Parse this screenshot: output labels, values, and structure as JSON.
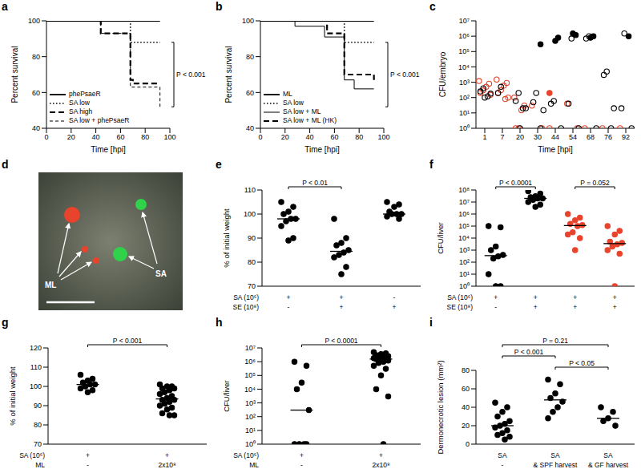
{
  "chart_data": [
    {
      "panel": "a",
      "type": "step",
      "x_label": "Time [hpi]",
      "y_label": "Percent survival",
      "xlim": [
        0,
        100
      ],
      "xticks": [
        0,
        20,
        40,
        60,
        80,
        100
      ],
      "ylim": [
        40,
        100
      ],
      "yticks": [
        40,
        60,
        80,
        100
      ],
      "legend": "lower left",
      "annotations": [
        "P < 0.001"
      ],
      "series": [
        {
          "name": "phePsaeR",
          "line_style": "solid",
          "x": [
            0,
            92
          ],
          "values": [
            100,
            100
          ]
        },
        {
          "name": "SA low",
          "line_style": "dotted",
          "x": [
            0,
            68,
            92
          ],
          "values": [
            100,
            88,
            88
          ]
        },
        {
          "name": "SA high",
          "line_style": "dashed",
          "x": [
            0,
            44,
            68,
            70,
            92
          ],
          "values": [
            100,
            93,
            67,
            65,
            65
          ]
        },
        {
          "name": "SA low + phePsaeR",
          "line_style": "shortdash",
          "x": [
            0,
            44,
            68,
            92
          ],
          "values": [
            100,
            93,
            63,
            52
          ]
        }
      ]
    },
    {
      "panel": "b",
      "type": "step",
      "x_label": "Time [hpi]",
      "y_label": "Percent survival",
      "xlim": [
        0,
        100
      ],
      "xticks": [
        0,
        20,
        40,
        60,
        80,
        100
      ],
      "ylim": [
        40,
        100
      ],
      "yticks": [
        40,
        60,
        80,
        100
      ],
      "legend": "lower left",
      "annotations": [
        "P < 0.001"
      ],
      "series": [
        {
          "name": "ML",
          "line_style": "solid",
          "x": [
            0,
            92
          ],
          "values": [
            100,
            100
          ]
        },
        {
          "name": "SA low",
          "line_style": "dotted",
          "x": [
            0,
            68,
            92
          ],
          "values": [
            100,
            88,
            88
          ]
        },
        {
          "name": "SA low + ML",
          "line_style": "thin",
          "x": [
            0,
            28,
            52,
            68,
            76,
            92
          ],
          "values": [
            100,
            97,
            91,
            67,
            62,
            62
          ]
        },
        {
          "name": "SA low + ML (HK)",
          "line_style": "dashed",
          "x": [
            0,
            54,
            68,
            92
          ],
          "values": [
            100,
            93,
            70,
            67
          ]
        }
      ]
    },
    {
      "panel": "c",
      "type": "scatter",
      "x_label": "Time [hpi]",
      "y_label": "CFU/embryo",
      "categories": [
        "1",
        "7",
        "20",
        "30",
        "44",
        "54",
        "68",
        "76",
        "92"
      ],
      "log": "y",
      "ylim": [
        1,
        10000000
      ],
      "yticks": [
        {
          "value": 1,
          "label": "10⁰"
        },
        {
          "value": 10,
          "label": "10¹"
        },
        {
          "value": 100,
          "label": "10²"
        },
        {
          "value": 1000,
          "label": "10³"
        },
        {
          "value": 10000,
          "label": "10⁴"
        },
        {
          "value": 100000,
          "label": "10⁵"
        },
        {
          "value": 1000000,
          "label": "10⁶"
        },
        {
          "value": 10000000,
          "label": "10⁷"
        }
      ],
      "series": [
        {
          "color": "#e8432c",
          "marker": "open",
          "values": [
            [
              1200,
              800,
              500,
              300,
              200,
              150
            ],
            [
              1500,
              900,
              600,
              300,
              200,
              100,
              80
            ],
            [
              100,
              30,
              15,
              1,
              1
            ],
            [
              30,
              1
            ],
            [
              1
            ],
            [
              40,
              1
            ],
            [
              1
            ],
            [
              1
            ],
            [
              1
            ]
          ]
        },
        {
          "color": "#000000",
          "marker": "open",
          "values": [
            [
              400,
              250,
              180,
              120,
              100
            ],
            [
              500,
              200
            ],
            [
              200,
              60,
              20,
              20,
              1
            ],
            [
              200,
              50,
              15,
              1
            ],
            [
              60,
              40,
              1
            ],
            [
              700000,
              40,
              1
            ],
            [
              1000000,
              700000,
              1
            ],
            [
              5000,
              3000,
              20,
              1
            ],
            [
              1500000,
              20,
              1
            ]
          ]
        },
        {
          "color": "#000000",
          "marker": "filled",
          "values": [
            [],
            [],
            [],
            [
              300000
            ],
            [
              800000,
              500000
            ],
            [
              1200000,
              1500000
            ],
            [
              1000000,
              800000
            ],
            [],
            [
              1000000
            ]
          ]
        },
        {
          "color": "#e8432c",
          "marker": "filled",
          "values": [
            [],
            [],
            [],
            [],
            [
              200
            ],
            [],
            [],
            [],
            []
          ]
        }
      ]
    },
    {
      "panel": "d",
      "type": "image",
      "labels": [
        "ML",
        "SA"
      ]
    },
    {
      "panel": "e",
      "type": "dot",
      "y_label": "% of initial weight",
      "ylim": [
        70,
        110
      ],
      "yticks": [
        70,
        80,
        90,
        100,
        110
      ],
      "annotations": [
        "P < 0.01"
      ],
      "x_rows": [
        {
          "label": "SA (10⁶)",
          "values": [
            "+",
            "+",
            "-"
          ]
        },
        {
          "label": "SE (10⁸)",
          "values": [
            "-",
            "+",
            "+"
          ]
        }
      ],
      "groups": [
        {
          "color": "#000000",
          "values": [
            105,
            103,
            101,
            100,
            98,
            98,
            97,
            95,
            90,
            89
          ],
          "median": 98
        },
        {
          "color": "#000000",
          "values": [
            98,
            90,
            88,
            87,
            85,
            84,
            83,
            82,
            78,
            75
          ],
          "median": 84.5
        },
        {
          "color": "#000000",
          "values": [
            105,
            104,
            103,
            101,
            100,
            100,
            100,
            99,
            98
          ],
          "median": 100
        }
      ]
    },
    {
      "panel": "f",
      "type": "dot",
      "y_label": "CFU/liver",
      "log": "y",
      "ylim": [
        1,
        100000000
      ],
      "yticks": [
        {
          "value": 1,
          "label": "10⁰"
        },
        {
          "value": 10,
          "label": "10¹"
        },
        {
          "value": 100,
          "label": "10²"
        },
        {
          "value": 1000,
          "label": "10³"
        },
        {
          "value": 10000,
          "label": "10⁴"
        },
        {
          "value": 100000,
          "label": "10⁵"
        },
        {
          "value": 1000000,
          "label": "10⁶"
        },
        {
          "value": 10000000,
          "label": "10⁷"
        },
        {
          "value": 100000000,
          "label": "10⁸"
        }
      ],
      "annotations": [
        "P < 0.0001",
        "P = 0.052"
      ],
      "x_rows": [
        {
          "label": "SA (10⁶)",
          "values": [
            "+",
            "+",
            "+",
            "+"
          ]
        },
        {
          "label": "SE (10⁸)",
          "values": [
            "-",
            "+",
            "+",
            "+"
          ]
        }
      ],
      "groups": [
        {
          "color": "#000000",
          "values": [
            100000,
            80000,
            2000,
            1000,
            400,
            300,
            200,
            10,
            1,
            1
          ],
          "median": 350
        },
        {
          "color": "#000000",
          "values": [
            80000000,
            50000000,
            30000000,
            25000000,
            20000000,
            20000000,
            15000000,
            10000000,
            6000000,
            4000000
          ],
          "median": 20000000
        },
        {
          "color": "#e8432c",
          "values": [
            1000000,
            500000,
            300000,
            150000,
            120000,
            100000,
            30000,
            20000,
            10000,
            1000
          ],
          "median": 110000
        },
        {
          "color": "#e8432c",
          "values": [
            100000,
            40000,
            20000,
            5000,
            4000,
            3000,
            2000,
            1000,
            500,
            1
          ],
          "median": 3500
        }
      ]
    },
    {
      "panel": "g",
      "type": "dot",
      "y_label": "% of initial weight",
      "ylim": [
        70,
        120
      ],
      "yticks": [
        70,
        80,
        90,
        100,
        110,
        120
      ],
      "annotations": [
        "P < 0.001"
      ],
      "x_rows": [
        {
          "label": "SA (10⁶)",
          "values": [
            "+",
            "+"
          ]
        },
        {
          "label": "ML",
          "values": [
            "-",
            "2x10⁸"
          ]
        }
      ],
      "groups": [
        {
          "color": "#000000",
          "values": [
            106,
            104,
            103,
            102,
            101,
            101,
            100,
            99,
            98,
            97
          ],
          "median": 101
        },
        {
          "color": "#000000",
          "values": [
            101,
            100,
            100,
            99,
            99,
            98,
            97,
            96,
            95,
            94,
            93,
            93,
            92,
            91,
            90,
            89,
            88,
            86,
            85,
            85
          ],
          "median": 93.5
        }
      ]
    },
    {
      "panel": "h",
      "type": "dot",
      "y_label": "CFU/liver",
      "log": "y",
      "ylim": [
        1,
        10000000
      ],
      "yticks": [
        {
          "value": 1,
          "label": "10⁰"
        },
        {
          "value": 10,
          "label": "10¹"
        },
        {
          "value": 100,
          "label": "10²"
        },
        {
          "value": 1000,
          "label": "10³"
        },
        {
          "value": 10000,
          "label": "10⁴"
        },
        {
          "value": 100000,
          "label": "10⁵"
        },
        {
          "value": 1000000,
          "label": "10⁶"
        },
        {
          "value": 10000000,
          "label": "10⁷"
        }
      ],
      "annotations": [
        "P < 0.0001"
      ],
      "x_rows": [
        {
          "label": "SA (10⁶)",
          "values": [
            "+",
            "+"
          ]
        },
        {
          "label": "ML",
          "values": [
            "-",
            "2x10⁸"
          ]
        }
      ],
      "groups": [
        {
          "color": "#000000",
          "values": [
            1000000,
            500000,
            30000,
            10000,
            300,
            1,
            1,
            1,
            1
          ],
          "median": 300
        },
        {
          "color": "#000000",
          "values": [
            5000000,
            4000000,
            3500000,
            3000000,
            2500000,
            2000000,
            2000000,
            1800000,
            1800000,
            1600000,
            1500000,
            1200000,
            1000000,
            800000,
            500000,
            300000,
            100000,
            10000,
            3000,
            1
          ],
          "median": 1550000
        }
      ]
    },
    {
      "panel": "i",
      "type": "dot",
      "y_label": "Dermonecrotic lesion (mm²)",
      "ylim": [
        0,
        80
      ],
      "yticks": [
        0,
        20,
        40,
        60,
        80
      ],
      "annotations": [
        "P = 0.21",
        "P < 0.001",
        "P < 0.05"
      ],
      "x_rows": [
        {
          "values": [
            "SA",
            "SA",
            "SA"
          ]
        },
        {
          "values": [
            "-",
            "& SPF harvest",
            "& GF harvest"
          ]
        }
      ],
      "groups": [
        {
          "color": "#000000",
          "values": [
            45,
            40,
            35,
            30,
            25,
            22,
            20,
            18,
            15,
            12,
            10,
            8,
            5
          ],
          "median": 20
        },
        {
          "color": "#000000",
          "values": [
            70,
            65,
            55,
            50,
            46,
            40,
            35,
            28
          ],
          "median": 48
        },
        {
          "color": "#000000",
          "values": [
            40,
            35,
            28,
            25,
            20
          ],
          "median": 28
        }
      ]
    }
  ]
}
